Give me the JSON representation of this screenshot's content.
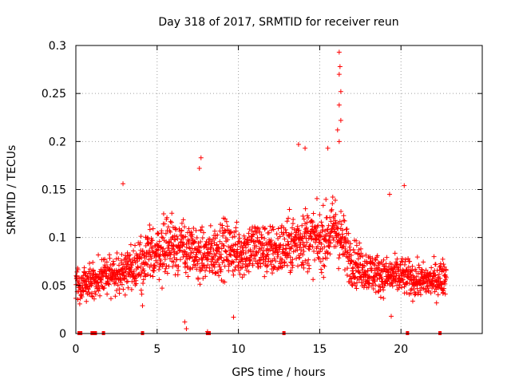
{
  "chart_data": {
    "type": "scatter",
    "title": "Day 318 of 2017, SRMTID for receiver reun",
    "xlabel": "GPS time / hours",
    "ylabel": "SRMTID / TECUs",
    "xlim": [
      0,
      25
    ],
    "ylim": [
      0,
      0.3
    ],
    "xticks": [
      0,
      5,
      10,
      15,
      20
    ],
    "xtick_labels": [
      "0",
      "5",
      "10",
      "15",
      "20"
    ],
    "yticks": [
      0,
      0.05,
      0.1,
      0.15,
      0.2,
      0.25,
      0.3
    ],
    "ytick_labels": [
      "0",
      "0.05",
      "0.1",
      "0.15",
      "0.2",
      "0.25",
      "0.3"
    ],
    "grid": true,
    "legend": "none",
    "marker": "+",
    "color": "#ff0000",
    "envelope_description_hours_vs_typical_value": [
      [
        0.0,
        0.05
      ],
      [
        1.0,
        0.055
      ],
      [
        2.0,
        0.06
      ],
      [
        3.0,
        0.065
      ],
      [
        4.0,
        0.075
      ],
      [
        5.0,
        0.085
      ],
      [
        6.0,
        0.095
      ],
      [
        7.0,
        0.085
      ],
      [
        8.0,
        0.08
      ],
      [
        9.0,
        0.09
      ],
      [
        10.0,
        0.085
      ],
      [
        11.0,
        0.09
      ],
      [
        12.0,
        0.085
      ],
      [
        13.0,
        0.09
      ],
      [
        14.0,
        0.1
      ],
      [
        15.0,
        0.095
      ],
      [
        16.0,
        0.11
      ],
      [
        17.0,
        0.075
      ],
      [
        18.0,
        0.065
      ],
      [
        19.0,
        0.06
      ],
      [
        20.0,
        0.06
      ],
      [
        21.0,
        0.055
      ],
      [
        22.0,
        0.055
      ],
      [
        22.8,
        0.06
      ]
    ],
    "notable_points": [
      {
        "x": 2.9,
        "y": 0.156
      },
      {
        "x": 7.7,
        "y": 0.183
      },
      {
        "x": 7.6,
        "y": 0.172
      },
      {
        "x": 13.7,
        "y": 0.197
      },
      {
        "x": 14.1,
        "y": 0.193
      },
      {
        "x": 15.5,
        "y": 0.193
      },
      {
        "x": 16.2,
        "y": 0.293
      },
      {
        "x": 16.25,
        "y": 0.278
      },
      {
        "x": 16.2,
        "y": 0.27
      },
      {
        "x": 16.3,
        "y": 0.252
      },
      {
        "x": 16.2,
        "y": 0.238
      },
      {
        "x": 16.3,
        "y": 0.222
      },
      {
        "x": 16.1,
        "y": 0.212
      },
      {
        "x": 16.2,
        "y": 0.2
      },
      {
        "x": 19.3,
        "y": 0.145
      },
      {
        "x": 20.2,
        "y": 0.154
      },
      {
        "x": 6.8,
        "y": 0.005
      },
      {
        "x": 6.7,
        "y": 0.012
      },
      {
        "x": 8.1,
        "y": 0.002
      },
      {
        "x": 9.7,
        "y": 0.017
      },
      {
        "x": 19.4,
        "y": 0.018
      },
      {
        "x": 4.1,
        "y": 0.029
      }
    ],
    "baseline_markers_x": [
      0.2,
      0.3,
      1.0,
      1.1,
      1.2,
      1.7,
      4.1,
      8.1,
      8.2,
      12.8,
      20.4,
      22.4
    ],
    "baseline_markers_y": 0.0
  }
}
